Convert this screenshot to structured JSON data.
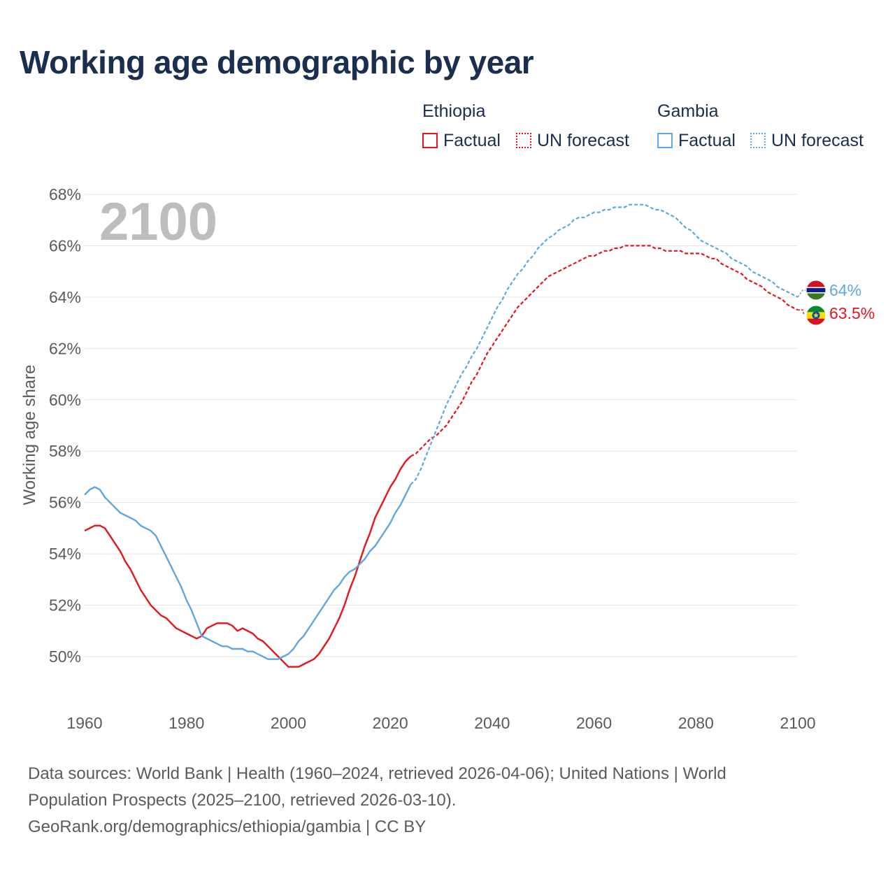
{
  "title": "Working age demographic by year",
  "legend": {
    "groups": [
      {
        "name": "Ethiopia",
        "color": "#e8141d",
        "items": [
          "Factual",
          "UN forecast"
        ]
      },
      {
        "name": "Gambia",
        "color": "#5ea7e3",
        "items": [
          "Factual",
          "UN forecast"
        ]
      }
    ]
  },
  "footer": {
    "line1": "Data sources: World Bank | Health (1960–2024, retrieved 2026-04-06); United Nations | World Population Prospects (2025–2100, retrieved 2026-03-10).",
    "line2": "GeoRank.org/demographics/ethiopia/gambia | CC BY"
  },
  "colors": {
    "ethiopia": "#e8141d",
    "gambia": "#5ea7e3",
    "title": "#1a2e4f"
  },
  "chart_data": {
    "type": "line",
    "title": "Working age demographic by year",
    "year_label": "2100",
    "xlabel": "",
    "ylabel": "Working age share",
    "xlim": [
      1960,
      2100
    ],
    "ylim": [
      48.2,
      68.6
    ],
    "x_ticks": [
      1960,
      1980,
      2000,
      2020,
      2040,
      2060,
      2080,
      2100
    ],
    "y_ticks": [
      50,
      52,
      54,
      56,
      58,
      60,
      62,
      64,
      66,
      68
    ],
    "y_tick_format": "%",
    "grid": true,
    "series": [
      {
        "name": "Ethiopia",
        "color": "#e8141d",
        "end_label": "63.5%",
        "factual": {
          "x": [
            1960,
            1961,
            1962,
            1963,
            1964,
            1965,
            1966,
            1967,
            1968,
            1969,
            1970,
            1971,
            1972,
            1973,
            1974,
            1975,
            1976,
            1977,
            1978,
            1979,
            1980,
            1981,
            1982,
            1983,
            1984,
            1985,
            1986,
            1987,
            1988,
            1989,
            1990,
            1991,
            1992,
            1993,
            1994,
            1995,
            1996,
            1997,
            1998,
            1999,
            2000,
            2001,
            2002,
            2003,
            2004,
            2005,
            2006,
            2007,
            2008,
            2009,
            2010,
            2011,
            2012,
            2013,
            2014,
            2015,
            2016,
            2017,
            2018,
            2019,
            2020,
            2021,
            2022,
            2023,
            2024
          ],
          "y": [
            54.9,
            55.0,
            55.1,
            55.1,
            55.0,
            54.7,
            54.4,
            54.1,
            53.7,
            53.4,
            53.0,
            52.6,
            52.3,
            52.0,
            51.8,
            51.6,
            51.5,
            51.3,
            51.1,
            51.0,
            50.9,
            50.8,
            50.7,
            50.8,
            51.1,
            51.2,
            51.3,
            51.3,
            51.3,
            51.2,
            51.0,
            51.1,
            51.0,
            50.9,
            50.7,
            50.6,
            50.4,
            50.2,
            50.0,
            49.8,
            49.6,
            49.6,
            49.6,
            49.7,
            49.8,
            49.9,
            50.1,
            50.4,
            50.7,
            51.1,
            51.5,
            52.0,
            52.6,
            53.1,
            53.7,
            54.3,
            54.8,
            55.4,
            55.8,
            56.2,
            56.6,
            56.9,
            57.3,
            57.6,
            57.8
          ]
        },
        "forecast": {
          "x": [
            2024,
            2025,
            2026,
            2027,
            2028,
            2029,
            2030,
            2031,
            2032,
            2033,
            2034,
            2035,
            2036,
            2037,
            2038,
            2039,
            2040,
            2041,
            2042,
            2043,
            2044,
            2045,
            2046,
            2047,
            2048,
            2049,
            2050,
            2051,
            2052,
            2053,
            2054,
            2055,
            2056,
            2057,
            2058,
            2059,
            2060,
            2061,
            2062,
            2063,
            2064,
            2065,
            2066,
            2067,
            2068,
            2069,
            2070,
            2071,
            2072,
            2073,
            2074,
            2075,
            2076,
            2077,
            2078,
            2079,
            2080,
            2081,
            2082,
            2083,
            2084,
            2085,
            2086,
            2087,
            2088,
            2089,
            2090,
            2091,
            2092,
            2093,
            2094,
            2095,
            2096,
            2097,
            2098,
            2099,
            2100
          ],
          "y": [
            57.8,
            57.9,
            58.1,
            58.3,
            58.5,
            58.6,
            58.8,
            59.0,
            59.3,
            59.6,
            59.9,
            60.3,
            60.7,
            61.0,
            61.4,
            61.8,
            62.1,
            62.4,
            62.7,
            63.0,
            63.3,
            63.6,
            63.8,
            64.0,
            64.2,
            64.4,
            64.6,
            64.8,
            64.9,
            65.0,
            65.1,
            65.2,
            65.3,
            65.4,
            65.5,
            65.6,
            65.6,
            65.7,
            65.8,
            65.8,
            65.9,
            65.9,
            66.0,
            66.0,
            66.0,
            66.0,
            66.0,
            66.0,
            65.9,
            65.9,
            65.8,
            65.8,
            65.8,
            65.8,
            65.7,
            65.7,
            65.7,
            65.7,
            65.6,
            65.5,
            65.5,
            65.3,
            65.2,
            65.1,
            65.0,
            64.9,
            64.7,
            64.6,
            64.5,
            64.4,
            64.2,
            64.1,
            64.0,
            63.9,
            63.7,
            63.6,
            63.5
          ]
        }
      },
      {
        "name": "Gambia",
        "color": "#5ea7e3",
        "end_label": "64%",
        "factual": {
          "x": [
            1960,
            1961,
            1962,
            1963,
            1964,
            1965,
            1966,
            1967,
            1968,
            1969,
            1970,
            1971,
            1972,
            1973,
            1974,
            1975,
            1976,
            1977,
            1978,
            1979,
            1980,
            1981,
            1982,
            1983,
            1984,
            1985,
            1986,
            1987,
            1988,
            1989,
            1990,
            1991,
            1992,
            1993,
            1994,
            1995,
            1996,
            1997,
            1998,
            1999,
            2000,
            2001,
            2002,
            2003,
            2004,
            2005,
            2006,
            2007,
            2008,
            2009,
            2010,
            2011,
            2012,
            2013,
            2014,
            2015,
            2016,
            2017,
            2018,
            2019,
            2020,
            2021,
            2022,
            2023,
            2024
          ],
          "y": [
            56.3,
            56.5,
            56.6,
            56.5,
            56.2,
            56.0,
            55.8,
            55.6,
            55.5,
            55.4,
            55.3,
            55.1,
            55.0,
            54.9,
            54.7,
            54.3,
            53.9,
            53.5,
            53.1,
            52.7,
            52.2,
            51.8,
            51.3,
            50.8,
            50.7,
            50.6,
            50.5,
            50.4,
            50.4,
            50.3,
            50.3,
            50.3,
            50.2,
            50.2,
            50.1,
            50.0,
            49.9,
            49.9,
            49.9,
            50.0,
            50.1,
            50.3,
            50.6,
            50.8,
            51.1,
            51.4,
            51.7,
            52.0,
            52.3,
            52.6,
            52.8,
            53.1,
            53.3,
            53.4,
            53.6,
            53.8,
            54.1,
            54.3,
            54.6,
            54.9,
            55.2,
            55.6,
            55.9,
            56.3,
            56.7
          ]
        },
        "forecast": {
          "x": [
            2024,
            2025,
            2026,
            2027,
            2028,
            2029,
            2030,
            2031,
            2032,
            2033,
            2034,
            2035,
            2036,
            2037,
            2038,
            2039,
            2040,
            2041,
            2042,
            2043,
            2044,
            2045,
            2046,
            2047,
            2048,
            2049,
            2050,
            2051,
            2052,
            2053,
            2054,
            2055,
            2056,
            2057,
            2058,
            2059,
            2060,
            2061,
            2062,
            2063,
            2064,
            2065,
            2066,
            2067,
            2068,
            2069,
            2070,
            2071,
            2072,
            2073,
            2074,
            2075,
            2076,
            2077,
            2078,
            2079,
            2080,
            2081,
            2082,
            2083,
            2084,
            2085,
            2086,
            2087,
            2088,
            2089,
            2090,
            2091,
            2092,
            2093,
            2094,
            2095,
            2096,
            2097,
            2098,
            2099,
            2100
          ],
          "y": [
            56.7,
            56.9,
            57.3,
            57.8,
            58.3,
            58.8,
            59.3,
            59.8,
            60.2,
            60.6,
            61.0,
            61.3,
            61.7,
            62.0,
            62.4,
            62.8,
            63.2,
            63.6,
            63.9,
            64.3,
            64.6,
            64.9,
            65.1,
            65.4,
            65.6,
            65.9,
            66.1,
            66.3,
            66.4,
            66.6,
            66.7,
            66.8,
            67.0,
            67.1,
            67.1,
            67.2,
            67.3,
            67.3,
            67.4,
            67.4,
            67.5,
            67.5,
            67.5,
            67.6,
            67.6,
            67.6,
            67.6,
            67.5,
            67.4,
            67.4,
            67.3,
            67.2,
            67.1,
            66.9,
            66.7,
            66.6,
            66.4,
            66.2,
            66.1,
            66.0,
            65.9,
            65.8,
            65.7,
            65.5,
            65.4,
            65.3,
            65.2,
            65.0,
            64.9,
            64.8,
            64.7,
            64.6,
            64.4,
            64.3,
            64.2,
            64.1,
            64.0
          ]
        }
      }
    ]
  }
}
